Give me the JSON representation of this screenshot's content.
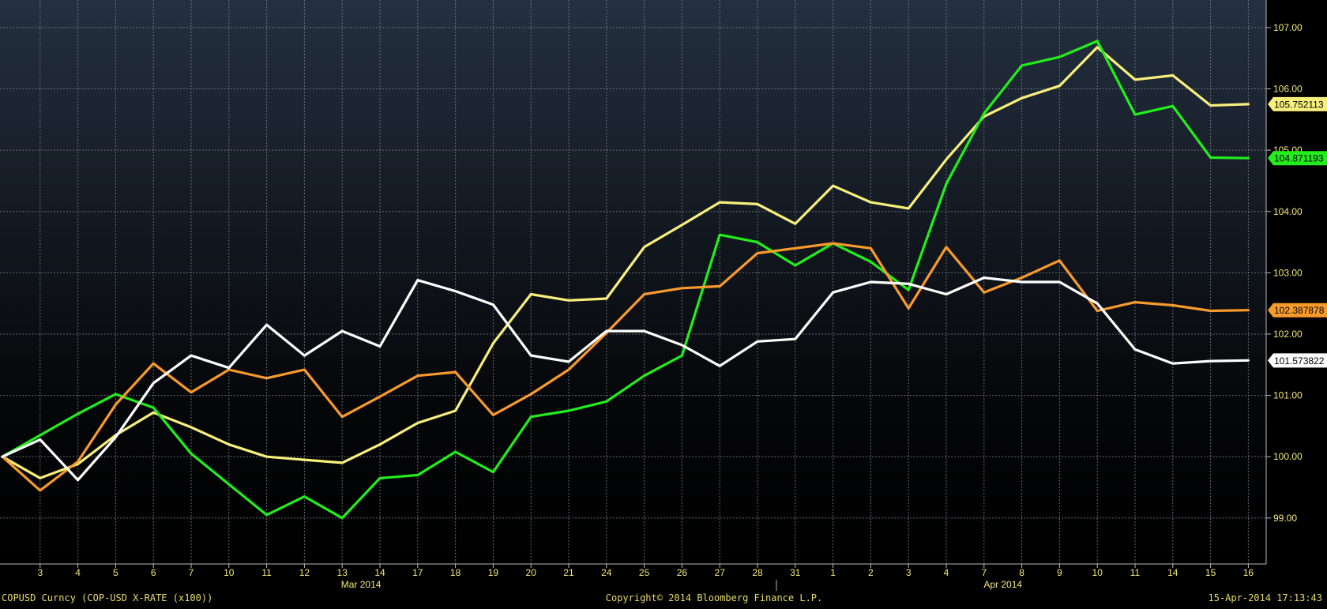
{
  "chart_data": {
    "type": "line",
    "x_tick_labels": [
      "3",
      "4",
      "5",
      "6",
      "7",
      "10",
      "11",
      "12",
      "13",
      "14",
      "17",
      "18",
      "19",
      "20",
      "21",
      "24",
      "25",
      "26",
      "27",
      "28",
      "31",
      "1",
      "2",
      "3",
      "4",
      "7",
      "8",
      "9",
      "10",
      "11",
      "14",
      "15",
      "16"
    ],
    "month_labels": [
      {
        "label": "Mar 2014",
        "at_index": 9.5
      },
      {
        "label": "Apr 2014",
        "at_index": 26.5
      }
    ],
    "y_ticks": [
      "107.00",
      "106.00",
      "105.00",
      "104.00",
      "103.00",
      "102.00",
      "101.00",
      "100.00",
      "99.00"
    ],
    "ylim": [
      98.25,
      107.45
    ],
    "grid": true,
    "colors": {
      "background_top": "#243040",
      "background_bottom": "#000000",
      "grid": "#7a8088",
      "axis_text": "#f2e97a",
      "axis_line": "#b7b7b7"
    },
    "series": [
      {
        "color": "#f7ef7c",
        "end_label": "105.752113",
        "values": [
          100.0,
          99.65,
          99.88,
          100.35,
          100.72,
          100.48,
          100.2,
          100.0,
          99.95,
          99.9,
          100.2,
          100.55,
          100.75,
          101.85,
          102.65,
          102.55,
          102.58,
          103.42,
          103.78,
          104.15,
          104.12,
          103.8,
          104.42,
          104.15,
          104.05,
          104.85,
          105.55,
          105.85,
          106.05,
          106.68,
          106.15,
          106.22,
          105.73,
          105.75
        ]
      },
      {
        "color": "#22ee1c",
        "end_label": "104.871193",
        "values": [
          100.0,
          100.35,
          100.7,
          101.02,
          100.8,
          100.05,
          99.55,
          99.05,
          99.35,
          99.0,
          99.65,
          99.7,
          100.08,
          99.75,
          100.65,
          100.75,
          100.9,
          101.32,
          101.65,
          103.62,
          103.5,
          103.12,
          103.48,
          103.18,
          102.72,
          104.45,
          105.6,
          106.38,
          106.52,
          106.78,
          105.58,
          105.72,
          104.88,
          104.87
        ]
      },
      {
        "color": "#f99a2c",
        "end_label": "102.387878",
        "values": [
          100.0,
          99.45,
          99.92,
          100.85,
          101.52,
          101.05,
          101.42,
          101.28,
          101.42,
          100.65,
          100.98,
          101.32,
          101.38,
          100.68,
          101.02,
          101.42,
          102.02,
          102.65,
          102.75,
          102.78,
          103.32,
          103.4,
          103.48,
          103.4,
          102.42,
          103.42,
          102.68,
          102.92,
          103.2,
          102.38,
          102.52,
          102.47,
          102.38,
          102.39
        ]
      },
      {
        "color": "#ffffff",
        "end_label": "101.573822",
        "values": [
          100.0,
          100.28,
          99.62,
          100.32,
          101.2,
          101.65,
          101.45,
          102.15,
          101.65,
          102.05,
          101.8,
          102.88,
          102.7,
          102.48,
          101.65,
          101.55,
          102.05,
          102.05,
          101.82,
          101.48,
          101.88,
          101.92,
          102.68,
          102.85,
          102.82,
          102.65,
          102.92,
          102.85,
          102.85,
          102.5,
          101.75,
          101.52,
          101.56,
          101.57
        ]
      }
    ]
  },
  "footer": {
    "left": "COPUSD Curncy (COP-USD X-RATE (x100))",
    "center": "Copyright© 2014 Bloomberg Finance L.P.",
    "right": "15-Apr-2014 17:13:43"
  }
}
